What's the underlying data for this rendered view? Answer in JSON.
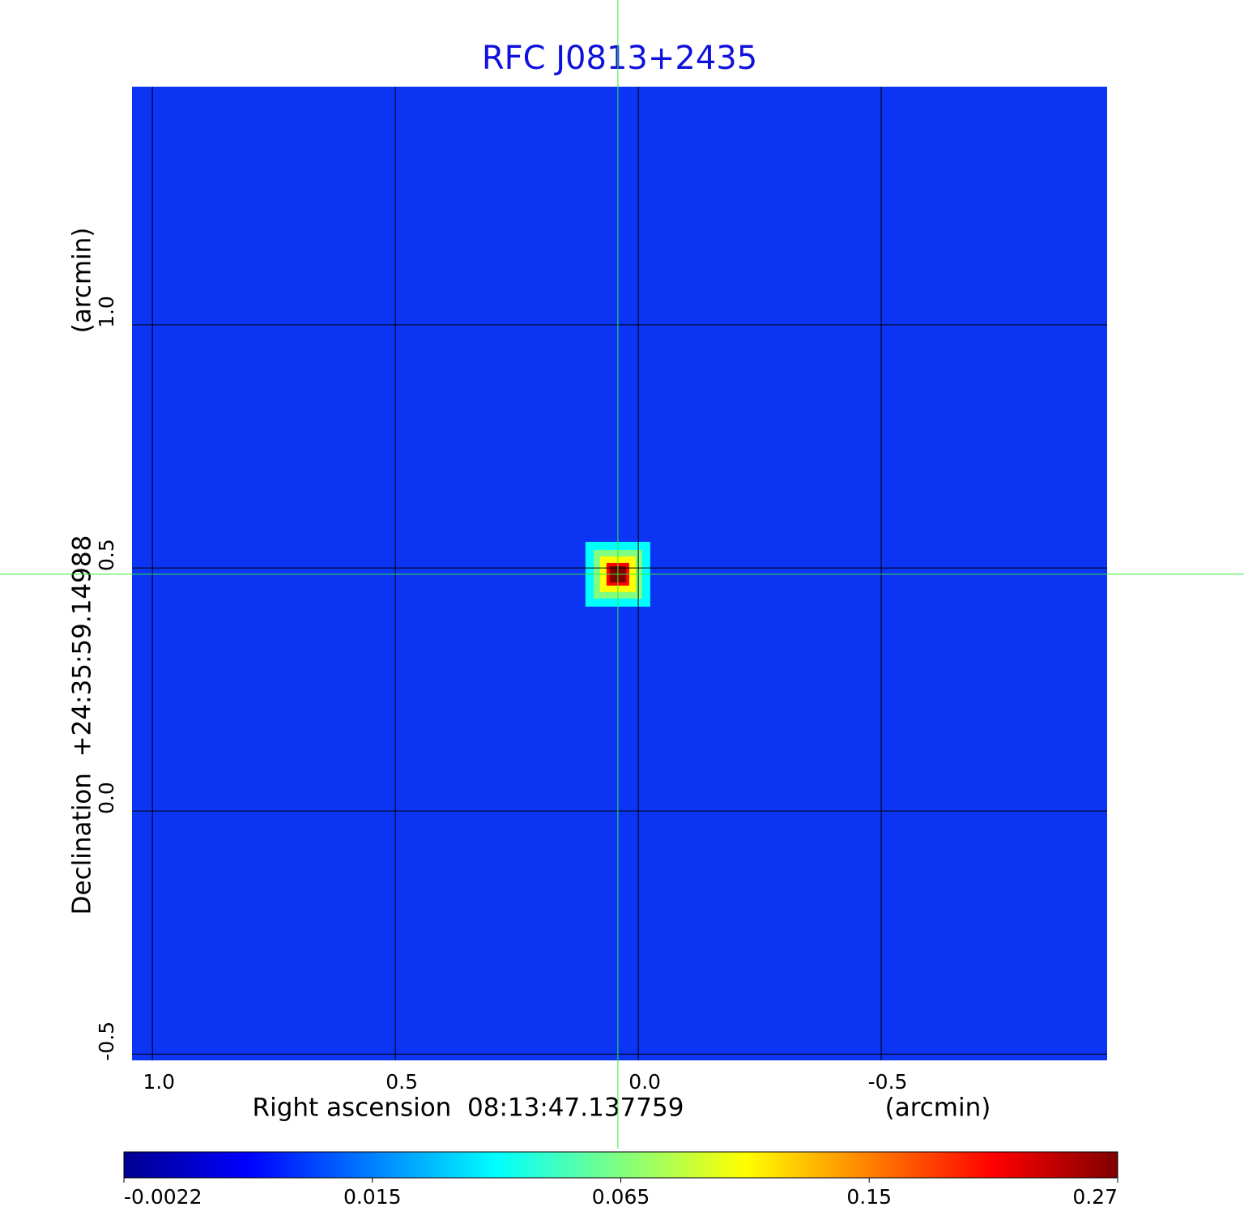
{
  "chart_data": {
    "type": "image",
    "title": "RFC J0813+2435",
    "x_label": "Right ascension  08:13:47.137759",
    "x_unit": "(arcmin)",
    "y_label": "Declination  +24:35:59.14988",
    "y_unit": "(arcmin)",
    "xlim": [
      1.042,
      -0.965
    ],
    "ylim": [
      -0.513,
      1.49
    ],
    "xticks": [
      {
        "value": 1,
        "label": "1.0"
      },
      0.5,
      {
        "value": 0,
        "label": "0.0"
      },
      -0.5
    ],
    "yticks": [
      -0.5,
      {
        "value": 0,
        "label": "0.0"
      },
      0.5,
      {
        "value": 1,
        "label": "1.0"
      }
    ],
    "grid": true,
    "background_color": "#0b35f2",
    "source": {
      "x": 0.042,
      "y": 0.487,
      "peak": 0.27
    },
    "crosshair_color": "#33ee33",
    "colormap": [
      "#00008f",
      "#0000ff",
      "#0080ff",
      "#00ffff",
      "#80ff80",
      "#ffff00",
      "#ff8000",
      "#ff0000",
      "#800000"
    ],
    "colorbar_ticks": [
      -0.0022,
      0.015,
      0.065,
      0.15,
      0.27
    ]
  }
}
